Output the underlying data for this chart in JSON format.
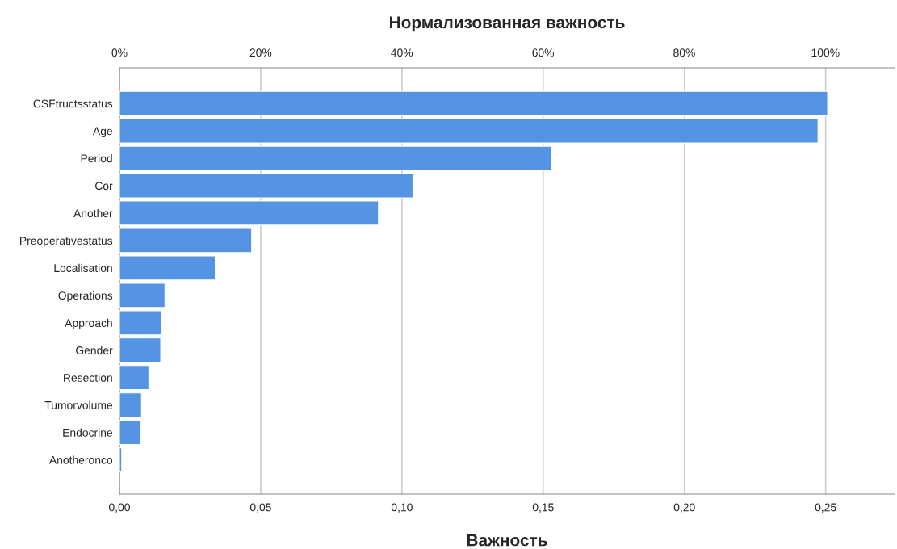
{
  "chart_data": {
    "type": "bar",
    "orientation": "horizontal",
    "x2label": "Нормализованная важность",
    "xlabel": "Важность",
    "categories": [
      "CSFtructsstatus",
      "Age",
      "Period",
      "Cor",
      "Another",
      "Preoperativestatus",
      "Localisation",
      "Operations",
      "Approach",
      "Gender",
      "Resection",
      "Tumorvolume",
      "Endocrine",
      "Anotheronco"
    ],
    "series": [
      {
        "color": "#5593e3",
        "values": [
          0.2507,
          0.2473,
          0.1528,
          0.1039,
          0.0917,
          0.0468,
          0.0339,
          0.0161,
          0.0149,
          0.0146,
          0.0104,
          0.0078,
          0.0075,
          0.0008
        ]
      }
    ],
    "xlim": [
      0,
      0.2744
    ],
    "xticks": [
      {
        "value": 0,
        "label": "0,00"
      },
      {
        "value": 0.05,
        "label": "0,05"
      },
      {
        "value": 0.1,
        "label": "0,10"
      },
      {
        "value": 0.15,
        "label": "0,15"
      },
      {
        "value": 0.2,
        "label": "0,20"
      },
      {
        "value": 0.25,
        "label": "0,25"
      }
    ],
    "x2lim": [
      0,
      109.8
    ],
    "x2ticks": [
      {
        "value": 0,
        "label": "0%"
      },
      {
        "value": 20,
        "label": "20%"
      },
      {
        "value": 40,
        "label": "40%"
      },
      {
        "value": 60,
        "label": "60%"
      },
      {
        "value": 80,
        "label": "80%"
      },
      {
        "value": 100,
        "label": "100%"
      }
    ],
    "grid": "x",
    "legend": false
  }
}
